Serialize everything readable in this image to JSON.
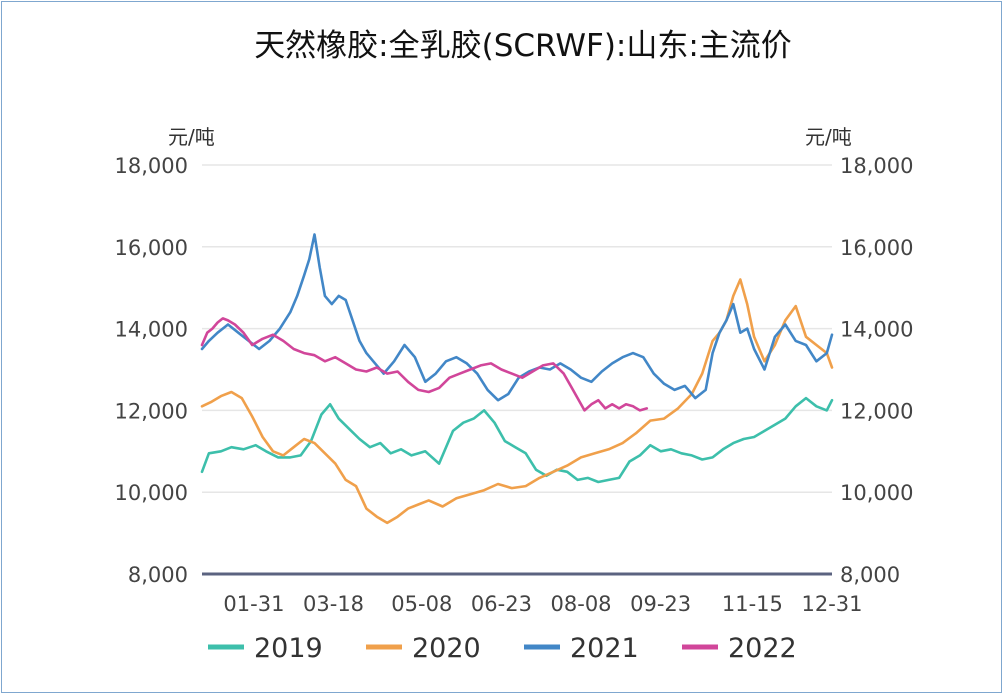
{
  "chart_data": {
    "type": "line",
    "title": "天然橡胶:全乳胶(SCRWF):山东:主流价",
    "y_unit_left": "元/吨",
    "y_unit_right": "元/吨",
    "ylim": [
      8000,
      18000
    ],
    "yticks": [
      "8,000",
      "10,000",
      "12,000",
      "14,000",
      "16,000",
      "18,000"
    ],
    "ytick_values": [
      8000,
      10000,
      12000,
      14000,
      16000,
      18000
    ],
    "xticks": [
      "01-31",
      "03-18",
      "05-08",
      "06-23",
      "08-08",
      "09-23",
      "11-15",
      "12-31"
    ],
    "xtick_days": [
      31,
      77,
      128,
      174,
      220,
      266,
      319,
      365
    ],
    "xlim": [
      1,
      365
    ],
    "grid": true,
    "legend_position": "bottom",
    "series": [
      {
        "name": "2019",
        "color": "#3dbfab",
        "x": [
          1,
          5,
          12,
          18,
          25,
          32,
          38,
          45,
          52,
          58,
          64,
          70,
          75,
          80,
          86,
          92,
          98,
          104,
          110,
          116,
          122,
          130,
          138,
          146,
          152,
          158,
          164,
          170,
          176,
          182,
          188,
          194,
          200,
          206,
          212,
          218,
          224,
          230,
          236,
          242,
          248,
          254,
          260,
          266,
          272,
          278,
          284,
          290,
          296,
          302,
          308,
          314,
          320,
          326,
          332,
          338,
          344,
          350,
          356,
          362,
          365
        ],
        "y": [
          10500,
          10950,
          11000,
          11100,
          11050,
          11150,
          11000,
          10850,
          10850,
          10900,
          11250,
          11900,
          12150,
          11800,
          11550,
          11300,
          11100,
          11200,
          10950,
          11050,
          10900,
          11000,
          10700,
          11500,
          11700,
          11800,
          12000,
          11700,
          11250,
          11100,
          10950,
          10550,
          10400,
          10550,
          10500,
          10300,
          10350,
          10250,
          10300,
          10350,
          10750,
          10900,
          11150,
          11000,
          11050,
          10950,
          10900,
          10800,
          10850,
          11050,
          11200,
          11300,
          11350,
          11500,
          11650,
          11800,
          12100,
          12300,
          12100,
          12000,
          12250
        ]
      },
      {
        "name": "2020",
        "color": "#f0a04b",
        "x": [
          1,
          6,
          12,
          18,
          24,
          30,
          36,
          42,
          48,
          54,
          60,
          66,
          72,
          78,
          84,
          90,
          96,
          102,
          108,
          114,
          120,
          126,
          132,
          140,
          148,
          156,
          164,
          172,
          180,
          188,
          196,
          204,
          212,
          220,
          228,
          236,
          244,
          252,
          260,
          268,
          276,
          284,
          290,
          296,
          300,
          304,
          308,
          312,
          316,
          320,
          326,
          332,
          338,
          344,
          350,
          356,
          362,
          365
        ],
        "y": [
          12100,
          12200,
          12350,
          12450,
          12300,
          11850,
          11350,
          11000,
          10900,
          11100,
          11300,
          11200,
          10950,
          10700,
          10300,
          10150,
          9600,
          9400,
          9250,
          9400,
          9600,
          9700,
          9800,
          9650,
          9850,
          9950,
          10050,
          10200,
          10100,
          10150,
          10350,
          10500,
          10650,
          10850,
          10950,
          11050,
          11200,
          11450,
          11750,
          11800,
          12050,
          12400,
          12900,
          13700,
          13900,
          14200,
          14800,
          15200,
          14600,
          13800,
          13200,
          13600,
          14200,
          14550,
          13800,
          13600,
          13400,
          13050
        ]
      },
      {
        "name": "2021",
        "color": "#4287c7",
        "x": [
          1,
          5,
          10,
          16,
          22,
          28,
          34,
          40,
          46,
          52,
          56,
          60,
          63,
          66,
          69,
          72,
          76,
          80,
          84,
          88,
          92,
          96,
          100,
          106,
          112,
          118,
          124,
          130,
          136,
          142,
          148,
          154,
          160,
          166,
          172,
          178,
          184,
          190,
          196,
          202,
          208,
          214,
          220,
          226,
          232,
          238,
          244,
          250,
          256,
          262,
          268,
          274,
          280,
          286,
          292,
          296,
          300,
          304,
          308,
          312,
          316,
          320,
          326,
          332,
          338,
          344,
          350,
          356,
          362,
          365
        ],
        "y": [
          13500,
          13700,
          13900,
          14100,
          13900,
          13700,
          13500,
          13700,
          14000,
          14400,
          14800,
          15300,
          15700,
          16300,
          15500,
          14800,
          14600,
          14800,
          14700,
          14200,
          13700,
          13400,
          13200,
          12900,
          13200,
          13600,
          13300,
          12700,
          12900,
          13200,
          13300,
          13150,
          12900,
          12500,
          12250,
          12400,
          12800,
          12950,
          13050,
          13000,
          13150,
          13000,
          12800,
          12700,
          12950,
          13150,
          13300,
          13400,
          13300,
          12900,
          12650,
          12500,
          12600,
          12300,
          12500,
          13400,
          13900,
          14200,
          14600,
          13900,
          14000,
          13500,
          13000,
          13800,
          14100,
          13700,
          13600,
          13200,
          13400,
          13850
        ]
      },
      {
        "name": "2022",
        "color": "#d1469a",
        "x": [
          1,
          4,
          7,
          10,
          13,
          16,
          20,
          25,
          30,
          36,
          42,
          48,
          54,
          60,
          66,
          72,
          78,
          84,
          90,
          96,
          102,
          108,
          114,
          120,
          126,
          132,
          138,
          144,
          150,
          156,
          162,
          168,
          174,
          180,
          186,
          192,
          198,
          204,
          210,
          214,
          218,
          222,
          226,
          230,
          234,
          238,
          242,
          246,
          250,
          254,
          258
        ],
        "y": [
          13600,
          13900,
          14000,
          14150,
          14250,
          14200,
          14100,
          13900,
          13600,
          13750,
          13850,
          13700,
          13500,
          13400,
          13350,
          13200,
          13300,
          13150,
          13000,
          12950,
          13050,
          12900,
          12950,
          12700,
          12500,
          12450,
          12550,
          12800,
          12900,
          13000,
          13100,
          13150,
          13000,
          12900,
          12800,
          12950,
          13100,
          13150,
          12900,
          12600,
          12300,
          12000,
          12150,
          12250,
          12050,
          12150,
          12050,
          12150,
          12100,
          12000,
          12050
        ]
      }
    ]
  }
}
